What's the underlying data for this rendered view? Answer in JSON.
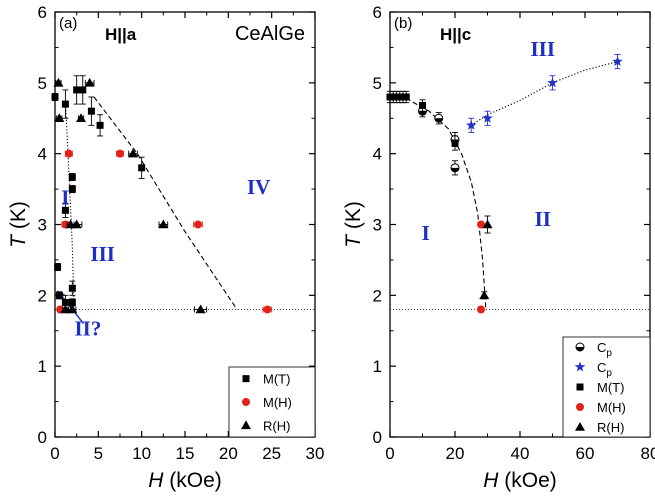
{
  "chart_data": [
    {
      "type": "scatter",
      "panel_label": "(a)",
      "field_label": "H||a",
      "compound_label": "CeAlGe",
      "xlabel": "H (kOe)",
      "ylabel": "T (K)",
      "xlim": [
        0,
        30
      ],
      "ylim": [
        0,
        6
      ],
      "xticks": [
        "0",
        "5",
        "10",
        "15",
        "20",
        "25",
        "30"
      ],
      "yticks": [
        "0",
        "1",
        "2",
        "3",
        "4",
        "5",
        "6"
      ],
      "phase_labels": [
        {
          "text": "I",
          "x": 1.2,
          "y": 3.35
        },
        {
          "text": "III",
          "x": 5.5,
          "y": 2.55
        },
        {
          "text": "IV",
          "x": 23.5,
          "y": 3.5
        },
        {
          "text": "II?",
          "x": 3.8,
          "y": 1.5
        }
      ],
      "reference_line": {
        "y": 1.8,
        "style": "dotted"
      },
      "phase_boundaries": [
        {
          "style": "dashed",
          "x": [
            4.5,
            9.5,
            15,
            21
          ],
          "y": [
            4.8,
            4.0,
            2.9,
            1.8
          ]
        },
        {
          "style": "dotted",
          "x": [
            1.2,
            1.5,
            2.0,
            2.2
          ],
          "y": [
            4.75,
            4.0,
            2.7,
            1.8
          ]
        }
      ],
      "arrow": {
        "x": [
          0.4,
          3.3
        ],
        "y": [
          2.05,
          1.6
        ]
      },
      "series": [
        {
          "name": "M(T)",
          "marker": "square",
          "color": "#000000",
          "points": [
            [
              0,
              4.8
            ],
            [
              0.3,
              2.4
            ],
            [
              0.5,
              2.0
            ],
            [
              1.2,
              4.7
            ],
            [
              1.2,
              3.2
            ],
            [
              1.2,
              1.9
            ],
            [
              2.0,
              3.67
            ],
            [
              2.0,
              3.5
            ],
            [
              2.0,
              2.1
            ],
            [
              2.0,
              1.9
            ],
            [
              2.5,
              4.9
            ],
            [
              3.2,
              4.9
            ],
            [
              4.2,
              4.6
            ],
            [
              5.2,
              4.4
            ],
            [
              10,
              3.8
            ]
          ],
          "yerr": [
            0.05,
            0.05,
            0.05,
            0.2,
            0.1,
            0.1,
            0.05,
            0.05,
            0.1,
            0.05,
            0.2,
            0.2,
            0.2,
            0.15,
            0.15
          ],
          "xerr": [
            0.3,
            0.3,
            0.3,
            0.3,
            0.3,
            0.3,
            0.3,
            0.3,
            0.3,
            0.3,
            0.3,
            0.3,
            0.3,
            0.3,
            0.3
          ]
        },
        {
          "name": "M(H)",
          "marker": "circle",
          "color": "#e3231b",
          "points": [
            [
              0.6,
              1.8
            ],
            [
              1.6,
              4.0
            ],
            [
              1.2,
              3.0
            ],
            [
              7.5,
              4.0
            ],
            [
              16.5,
              3.0
            ],
            [
              24.5,
              1.8
            ]
          ],
          "xerr": [
            0.3,
            0.4,
            0.4,
            0.4,
            0.5,
            0.5
          ]
        },
        {
          "name": "R(H)",
          "marker": "triangle",
          "color": "#000000",
          "points": [
            [
              0.4,
              5.0
            ],
            [
              0.5,
              4.5
            ],
            [
              4.0,
              5.0
            ],
            [
              3.0,
              4.5
            ],
            [
              9.0,
              4.0
            ],
            [
              12.5,
              3.0
            ],
            [
              2.5,
              3.0
            ],
            [
              1.8,
              3.0
            ],
            [
              16.8,
              1.8
            ],
            [
              2.0,
              1.8
            ],
            [
              1.2,
              1.8
            ]
          ],
          "xerr": [
            0.3,
            0.3,
            0.5,
            0.3,
            0.5,
            0.5,
            0.6,
            0.4,
            0.7,
            0.4,
            0.3
          ]
        }
      ],
      "legend": {
        "placement": "bottom-right",
        "entries": [
          "M(T)",
          "M(H)",
          "R(H)"
        ]
      }
    },
    {
      "type": "scatter",
      "panel_label": "(b)",
      "field_label": "H||c",
      "xlabel": "H (kOe)",
      "ylabel": "T (K)",
      "xlim": [
        0,
        80
      ],
      "ylim": [
        0,
        6
      ],
      "xticks": [
        "0",
        "20",
        "40",
        "60",
        "80"
      ],
      "yticks": [
        "0",
        "1",
        "2",
        "3",
        "4",
        "5",
        "6"
      ],
      "phase_labels": [
        {
          "text": "III",
          "x": 47,
          "y": 5.45
        },
        {
          "text": "I",
          "x": 11,
          "y": 2.85
        },
        {
          "text": "II",
          "x": 47,
          "y": 3.05
        }
      ],
      "reference_line": {
        "y": 1.8,
        "style": "dotted"
      },
      "phase_boundaries": [
        {
          "style": "dashed",
          "x": [
            0,
            5,
            12,
            18,
            22,
            25,
            27,
            28.5,
            29.5
          ],
          "y": [
            4.8,
            4.78,
            4.6,
            4.35,
            4.0,
            3.6,
            3.15,
            2.5,
            1.8
          ]
        },
        {
          "style": "dotted",
          "x": [
            25,
            30,
            40,
            50,
            60,
            70
          ],
          "y": [
            4.4,
            4.55,
            4.75,
            5.0,
            5.18,
            5.3
          ]
        }
      ],
      "series": [
        {
          "name": "C_p",
          "marker": "half-circle",
          "color": "#000000",
          "points": [
            [
              10,
              4.6
            ],
            [
              15,
              4.5
            ],
            [
              20,
              4.2
            ],
            [
              20,
              3.8
            ]
          ],
          "yerr": [
            0.08,
            0.08,
            0.1,
            0.1
          ]
        },
        {
          "name": "C_p",
          "marker": "star",
          "color": "#2231c8",
          "points": [
            [
              25,
              4.4
            ],
            [
              30,
              4.5
            ],
            [
              50,
              5.0
            ],
            [
              70,
              5.3
            ]
          ],
          "yerr": [
            0.1,
            0.1,
            0.1,
            0.1
          ]
        },
        {
          "name": "M(T)",
          "marker": "square",
          "color": "#000000",
          "points": [
            [
              0,
              4.8
            ],
            [
              1,
              4.8
            ],
            [
              2,
              4.8
            ],
            [
              3,
              4.8
            ],
            [
              4,
              4.8
            ],
            [
              5,
              4.8
            ],
            [
              10,
              4.68
            ],
            [
              20,
              4.15
            ]
          ],
          "yerr": [
            0.08,
            0.08,
            0.08,
            0.08,
            0.08,
            0.08,
            0.08,
            0.1
          ]
        },
        {
          "name": "M(H)",
          "marker": "circle",
          "color": "#e3231b",
          "points": [
            [
              28,
              3.0
            ],
            [
              28,
              1.8
            ]
          ]
        },
        {
          "name": "R(H)",
          "marker": "triangle",
          "color": "#000000",
          "points": [
            [
              30,
              3.0
            ],
            [
              29,
              2.0
            ]
          ],
          "yerr": [
            0.12,
            0.05
          ]
        }
      ],
      "legend": {
        "placement": "bottom-right",
        "entries": [
          {
            "marker": "half-circle",
            "color": "#000000",
            "label": "C",
            "sub": "p"
          },
          {
            "marker": "star",
            "color": "#2231c8",
            "label": "C",
            "sub": "p"
          },
          {
            "marker": "square",
            "color": "#000000",
            "label": "M(T)"
          },
          {
            "marker": "circle",
            "color": "#e3231b",
            "label": "M(H)"
          },
          {
            "marker": "triangle",
            "color": "#000000",
            "label": "R(H)"
          }
        ]
      }
    }
  ]
}
